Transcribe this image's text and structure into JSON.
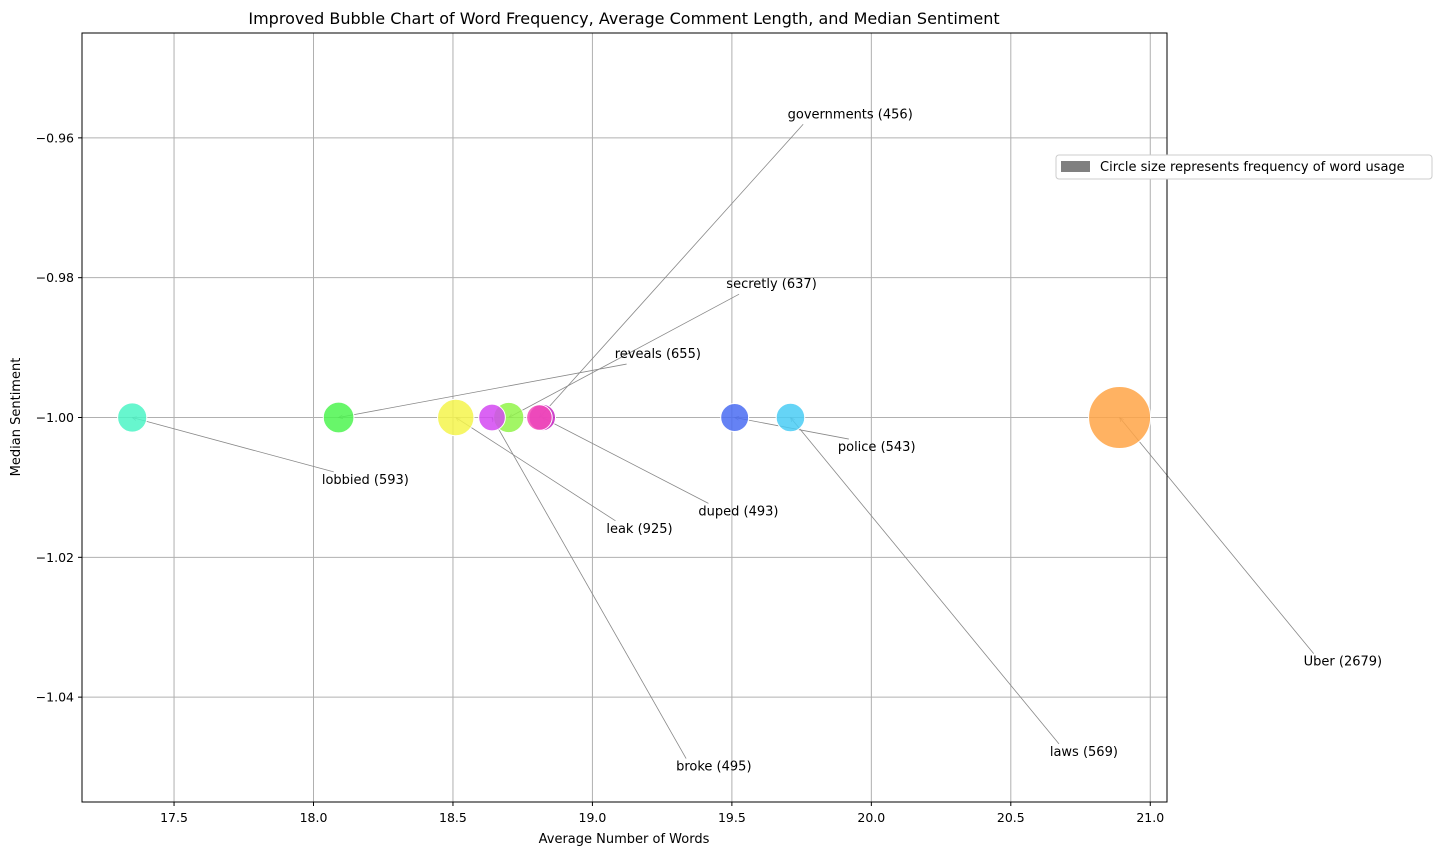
{
  "chart_data": {
    "type": "scatter",
    "title": "Improved Bubble Chart of Word Frequency, Average Comment Length, and Median Sentiment",
    "xlabel": "Average Number of Words",
    "ylabel": "Median Sentiment",
    "xlim": [
      17.17,
      21.06
    ],
    "ylim": [
      -1.055,
      -0.945
    ],
    "xticks": [
      17.5,
      18.0,
      18.5,
      19.0,
      19.5,
      20.0,
      20.5,
      21.0
    ],
    "xtick_labels": [
      "17.5",
      "18.0",
      "18.5",
      "19.0",
      "19.5",
      "20.0",
      "20.5",
      "21.0"
    ],
    "yticks": [
      -0.96,
      -0.98,
      -1.0,
      -1.02,
      -1.04
    ],
    "ytick_labels": [
      "−0.96",
      "−0.98",
      "−1.00",
      "−1.02",
      "−1.04"
    ],
    "grid": true,
    "legend": {
      "placement": "upper right, outside axes",
      "label": "Circle size represents frequency of word usage",
      "color": "#808080"
    },
    "points": [
      {
        "word": "lobbied",
        "x": 17.35,
        "y": -1.0,
        "frequency": 593,
        "label": "lobbied (593)",
        "color": "#4CF5C6",
        "label_x": 18.03,
        "label_y": -1.0095
      },
      {
        "word": "reveals",
        "x": 18.09,
        "y": -1.0,
        "frequency": 655,
        "label": "reveals (655)",
        "color": "#4DF450",
        "label_x": 19.08,
        "label_y": -0.9915
      },
      {
        "word": "leak",
        "x": 18.51,
        "y": -1.0,
        "frequency": 925,
        "label": "leak (925)",
        "color": "#F4F54C",
        "label_x": 19.05,
        "label_y": -1.0165
      },
      {
        "word": "broke",
        "x": 18.64,
        "y": -1.0,
        "frequency": 495,
        "label": "broke (495)",
        "color": "#D448F2",
        "label_x": 19.3,
        "label_y": -1.0505
      },
      {
        "word": "secretly",
        "x": 18.7,
        "y": -1.0,
        "frequency": 637,
        "label": "secretly (637)",
        "color": "#92F44A",
        "label_x": 19.48,
        "label_y": -0.9815
      },
      {
        "word": "governments",
        "x": 18.81,
        "y": -1.0,
        "frequency": 456,
        "label": "governments (456)",
        "color": "#F24AB8",
        "label_x": 19.7,
        "label_y": -0.9572
      },
      {
        "word": "duped",
        "x": 18.82,
        "y": -1.0,
        "frequency": 493,
        "label": "duped (493)",
        "color": "#C623C2",
        "label_x": 19.38,
        "label_y": -1.014
      },
      {
        "word": "police",
        "x": 19.51,
        "y": -1.0,
        "frequency": 543,
        "label": "police (543)",
        "color": "#4A6CF2",
        "label_x": 19.88,
        "label_y": -1.0048
      },
      {
        "word": "laws",
        "x": 19.71,
        "y": -1.0,
        "frequency": 569,
        "label": "laws (569)",
        "color": "#4ACDF5",
        "label_x": 20.64,
        "label_y": -1.0484
      },
      {
        "word": "Uber",
        "x": 20.89,
        "y": -1.0,
        "frequency": 2679,
        "label": "Uber (2679)",
        "color": "#FFA546",
        "label_x": 21.55,
        "label_y": -1.0355
      }
    ]
  }
}
